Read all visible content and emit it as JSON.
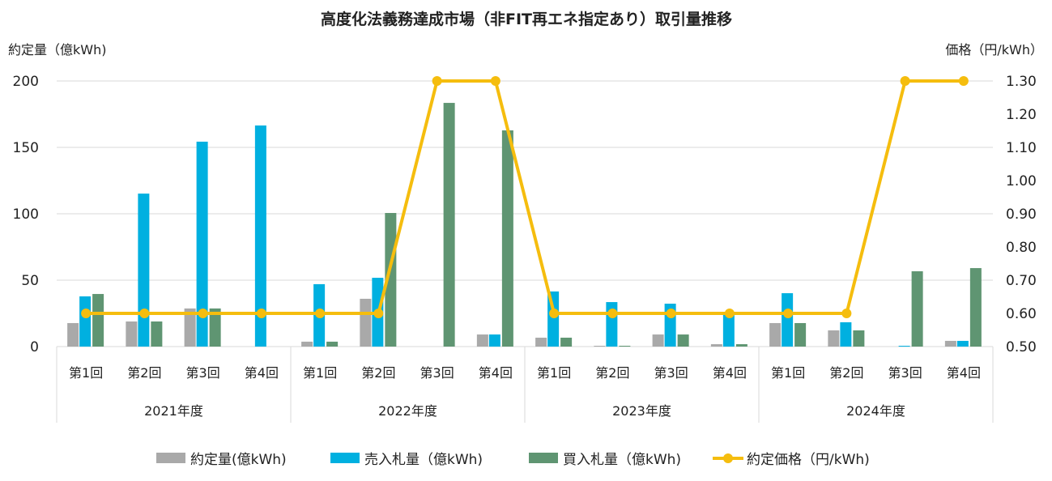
{
  "chart_data": {
    "type": "bar+line",
    "title": "高度化法義務達成市場（非FIT再エネ指定あり）取引量推移",
    "ylabel_left": "約定量（億kWh)",
    "ylabel_right": "価格（円/kWh）",
    "ylim_left": [
      0,
      200
    ],
    "yticks_left": [
      "0",
      "50",
      "100",
      "150",
      "200"
    ],
    "ylim_right": [
      0.5,
      1.3
    ],
    "yticks_right": [
      "0.50",
      "0.60",
      "0.70",
      "0.80",
      "0.90",
      "1.00",
      "1.10",
      "1.20",
      "1.30"
    ],
    "grid": true,
    "years": [
      "2021年度",
      "2022年度",
      "2023年度",
      "2024年度"
    ],
    "rounds": [
      "第1回",
      "第2回",
      "第3回",
      "第4回"
    ],
    "series": [
      {
        "name": "約定量(億kWh)",
        "type": "bar",
        "color": "#a9a9a9",
        "values": [
          17.7,
          18.9,
          28.7,
          0,
          3.7,
          36,
          0,
          9.1,
          6.7,
          0.6,
          9.1,
          1.8,
          17.7,
          12.2,
          0,
          4.3
        ]
      },
      {
        "name": "売入札量（億kWh)",
        "type": "bar",
        "color": "#00b0e0",
        "values": [
          37.8,
          115.2,
          154.3,
          166.5,
          47,
          51.8,
          0,
          9.1,
          41.5,
          33.5,
          32.3,
          24.4,
          40.2,
          18.3,
          0.6,
          4.3
        ]
      },
      {
        "name": "買入札量（億kWh)",
        "type": "bar",
        "color": "#5f9572",
        "values": [
          39.6,
          18.9,
          28.7,
          0,
          3.7,
          100.6,
          183.5,
          162.8,
          6.7,
          0.6,
          9.1,
          1.8,
          17.7,
          12.2,
          56.7,
          59.1
        ]
      },
      {
        "name": "約定価格（円/kWh)",
        "type": "line",
        "axis": "right",
        "color": "#f5bd0e",
        "values": [
          0.6,
          0.6,
          0.6,
          0.6,
          0.6,
          0.6,
          1.3,
          1.3,
          0.6,
          0.6,
          0.6,
          0.6,
          0.6,
          0.6,
          1.3,
          1.3
        ]
      }
    ],
    "legend_position": "bottom"
  }
}
